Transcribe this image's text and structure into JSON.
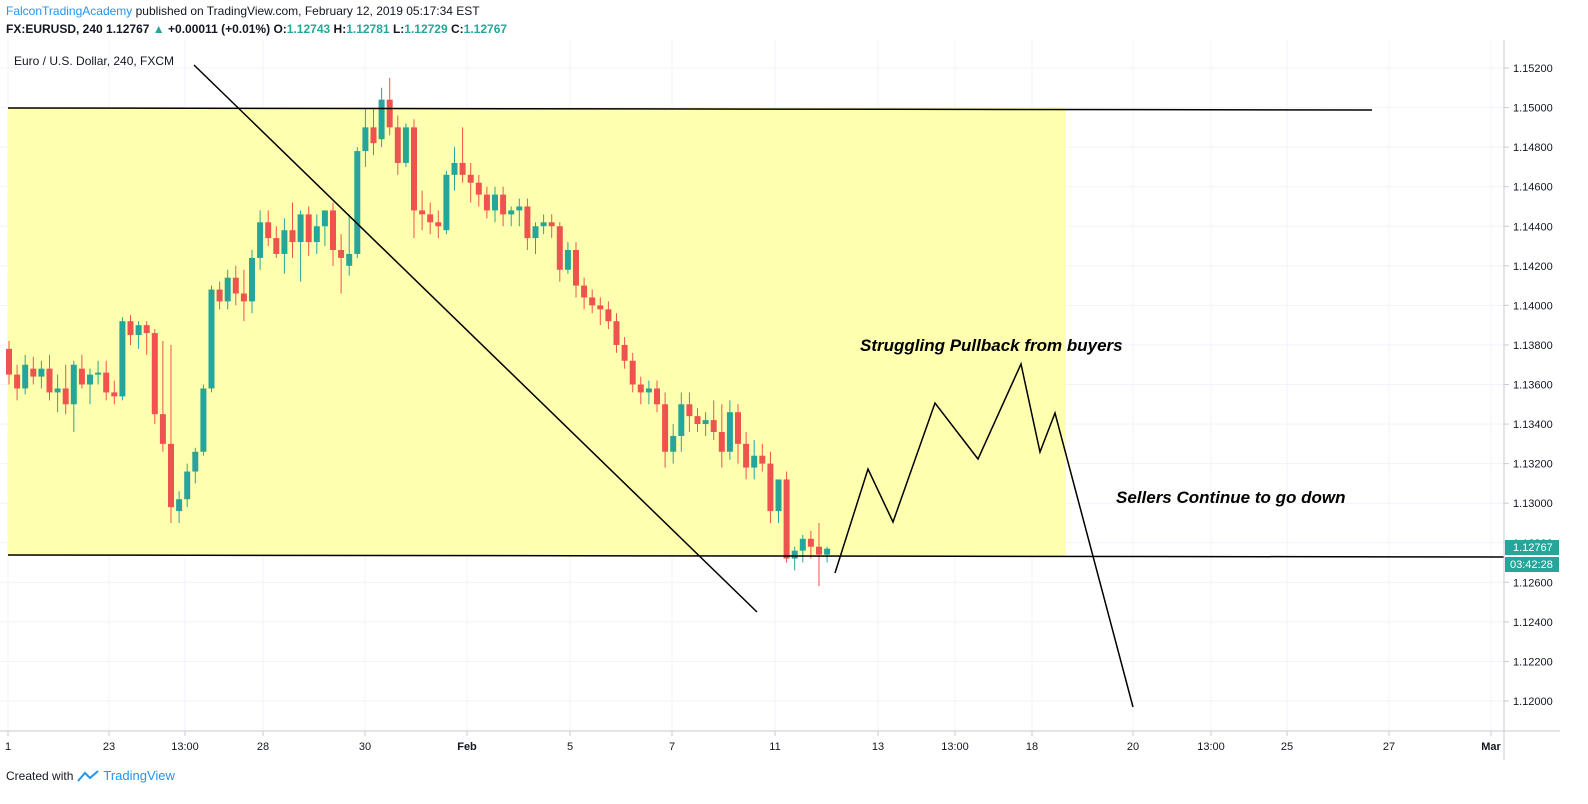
{
  "header": {
    "author": "FalconTradingAcademy",
    "published": "published on TradingView.com, February 12, 2019 05:17:34 EST",
    "symbol": "FX:EURUSD, 240",
    "last": "1.12767",
    "change": "+0.00011 (+0.01%)",
    "o_label": "O:",
    "o_value": "1.12743",
    "h_label": "H:",
    "h_value": "1.12781",
    "l_label": "L:",
    "l_value": "1.12729",
    "c_label": "C:",
    "c_value": "1.12767"
  },
  "chart": {
    "symbol_title": "Euro / U.S. Dollar, 240, FXCM",
    "price_tag": "1.12767",
    "countdown": "03:42:28",
    "annotations": [
      "Struggling Pullback from buyers",
      "Sellers Continue to go down"
    ]
  },
  "colors": {
    "up": "#26a69a",
    "down": "#ef5350",
    "zone": "#ffffb0",
    "line": "#000000",
    "grid": "#f0f3fa",
    "brand": "#2196f3"
  },
  "footer": {
    "created": "Created with",
    "brand": "TradingView"
  },
  "chart_data": {
    "type": "candlestick",
    "y_ticks": [
      "1.15200",
      "1.15000",
      "1.14800",
      "1.14600",
      "1.14400",
      "1.14200",
      "1.14000",
      "1.13800",
      "1.13600",
      "1.13400",
      "1.13200",
      "1.13000",
      "1.12800",
      "1.12600",
      "1.12400",
      "1.12200",
      "1.12000"
    ],
    "x_ticks": [
      "1",
      "23",
      "13:00",
      "28",
      "30",
      "Feb",
      "5",
      "7",
      "11",
      "13",
      "13:00",
      "18",
      "20",
      "13:00",
      "25",
      "27",
      "Mar"
    ],
    "ylim": [
      1.1188,
      1.1526
    ],
    "candles": [
      [
        1.1378,
        1.1382,
        1.136,
        1.1365
      ],
      [
        1.1365,
        1.137,
        1.1352,
        1.1358
      ],
      [
        1.1358,
        1.1375,
        1.1355,
        1.137
      ],
      [
        1.1368,
        1.1374,
        1.136,
        1.1364
      ],
      [
        1.1364,
        1.1372,
        1.1358,
        1.1368
      ],
      [
        1.1368,
        1.1375,
        1.1352,
        1.1356
      ],
      [
        1.1356,
        1.1365,
        1.1346,
        1.1358
      ],
      [
        1.1358,
        1.137,
        1.1345,
        1.135
      ],
      [
        1.135,
        1.1372,
        1.1336,
        1.137
      ],
      [
        1.1368,
        1.1375,
        1.1358,
        1.136
      ],
      [
        1.136,
        1.1368,
        1.135,
        1.1365
      ],
      [
        1.1365,
        1.1372,
        1.136,
        1.1366
      ],
      [
        1.1366,
        1.1372,
        1.1352,
        1.1356
      ],
      [
        1.1356,
        1.1362,
        1.135,
        1.1354
      ],
      [
        1.1354,
        1.1394,
        1.1352,
        1.1392
      ],
      [
        1.1392,
        1.1395,
        1.138,
        1.1385
      ],
      [
        1.1385,
        1.1392,
        1.1378,
        1.139
      ],
      [
        1.139,
        1.1392,
        1.1375,
        1.1386
      ],
      [
        1.1386,
        1.1388,
        1.134,
        1.1345
      ],
      [
        1.1345,
        1.1382,
        1.1326,
        1.133
      ],
      [
        1.133,
        1.138,
        1.129,
        1.1298
      ],
      [
        1.1296,
        1.1306,
        1.129,
        1.1302
      ],
      [
        1.1302,
        1.132,
        1.1298,
        1.1316
      ],
      [
        1.1316,
        1.1328,
        1.131,
        1.1326
      ],
      [
        1.1326,
        1.136,
        1.1324,
        1.1358
      ],
      [
        1.1358,
        1.141,
        1.1356,
        1.1408
      ],
      [
        1.1408,
        1.1412,
        1.1398,
        1.1402
      ],
      [
        1.1402,
        1.1418,
        1.1398,
        1.1414
      ],
      [
        1.1414,
        1.142,
        1.14,
        1.1406
      ],
      [
        1.1406,
        1.1418,
        1.1392,
        1.1402
      ],
      [
        1.1402,
        1.1428,
        1.1396,
        1.1424
      ],
      [
        1.1424,
        1.1448,
        1.1418,
        1.1442
      ],
      [
        1.1442,
        1.1448,
        1.143,
        1.1434
      ],
      [
        1.1434,
        1.144,
        1.1424,
        1.1426
      ],
      [
        1.1426,
        1.1444,
        1.1416,
        1.1438
      ],
      [
        1.1438,
        1.1452,
        1.1424,
        1.1432
      ],
      [
        1.1432,
        1.1448,
        1.1412,
        1.1446
      ],
      [
        1.1446,
        1.145,
        1.1425,
        1.1432
      ],
      [
        1.1432,
        1.1446,
        1.1426,
        1.144
      ],
      [
        1.144,
        1.1446,
        1.143,
        1.1448
      ],
      [
        1.1448,
        1.1452,
        1.142,
        1.1428
      ],
      [
        1.1428,
        1.1436,
        1.1406,
        1.1424
      ],
      [
        1.142,
        1.1446,
        1.1415,
        1.1426
      ],
      [
        1.1426,
        1.148,
        1.1424,
        1.1478
      ],
      [
        1.1478,
        1.15,
        1.147,
        1.149
      ],
      [
        1.149,
        1.15,
        1.1476,
        1.1482
      ],
      [
        1.1484,
        1.151,
        1.148,
        1.1504
      ],
      [
        1.1504,
        1.1515,
        1.1486,
        1.149
      ],
      [
        1.149,
        1.1496,
        1.1466,
        1.1472
      ],
      [
        1.1472,
        1.1492,
        1.147,
        1.149
      ],
      [
        1.149,
        1.1494,
        1.1434,
        1.1448
      ],
      [
        1.1448,
        1.1458,
        1.1438,
        1.1446
      ],
      [
        1.1446,
        1.1452,
        1.1436,
        1.1442
      ],
      [
        1.1442,
        1.1448,
        1.1434,
        1.144
      ],
      [
        1.1438,
        1.1468,
        1.1436,
        1.1466
      ],
      [
        1.1466,
        1.148,
        1.1458,
        1.1472
      ],
      [
        1.1472,
        1.149,
        1.1462,
        1.1466
      ],
      [
        1.1466,
        1.1472,
        1.1452,
        1.1462
      ],
      [
        1.1462,
        1.1466,
        1.145,
        1.1456
      ],
      [
        1.1456,
        1.146,
        1.1444,
        1.1448
      ],
      [
        1.1448,
        1.146,
        1.1442,
        1.1456
      ],
      [
        1.1456,
        1.146,
        1.144,
        1.1446
      ],
      [
        1.1446,
        1.145,
        1.144,
        1.1448
      ],
      [
        1.1448,
        1.1454,
        1.144,
        1.145
      ],
      [
        1.145,
        1.1454,
        1.1428,
        1.1434
      ],
      [
        1.1434,
        1.1442,
        1.1426,
        1.144
      ],
      [
        1.144,
        1.1446,
        1.1436,
        1.1442
      ],
      [
        1.1442,
        1.1446,
        1.1434,
        1.144
      ],
      [
        1.144,
        1.1442,
        1.1412,
        1.1418
      ],
      [
        1.1418,
        1.1432,
        1.1416,
        1.1428
      ],
      [
        1.1428,
        1.1432,
        1.1404,
        1.141
      ],
      [
        1.141,
        1.1414,
        1.1398,
        1.1404
      ],
      [
        1.1404,
        1.1408,
        1.1396,
        1.14
      ],
      [
        1.14,
        1.1404,
        1.139,
        1.1398
      ],
      [
        1.1398,
        1.1402,
        1.1388,
        1.1392
      ],
      [
        1.1392,
        1.1396,
        1.1376,
        1.138
      ],
      [
        1.138,
        1.1384,
        1.1368,
        1.1372
      ],
      [
        1.1372,
        1.1376,
        1.1356,
        1.136
      ],
      [
        1.136,
        1.1364,
        1.135,
        1.1356
      ],
      [
        1.1356,
        1.1362,
        1.135,
        1.1358
      ],
      [
        1.1358,
        1.1362,
        1.1346,
        1.135
      ],
      [
        1.135,
        1.1356,
        1.1318,
        1.1326
      ],
      [
        1.1326,
        1.134,
        1.132,
        1.1334
      ],
      [
        1.1334,
        1.1356,
        1.1326,
        1.135
      ],
      [
        1.135,
        1.1356,
        1.1336,
        1.1344
      ],
      [
        1.1344,
        1.1348,
        1.1336,
        1.134
      ],
      [
        1.134,
        1.1346,
        1.1334,
        1.1342
      ],
      [
        1.1342,
        1.1352,
        1.1332,
        1.1336
      ],
      [
        1.1336,
        1.135,
        1.1318,
        1.1326
      ],
      [
        1.1326,
        1.1352,
        1.1322,
        1.1346
      ],
      [
        1.1346,
        1.135,
        1.132,
        1.133
      ],
      [
        1.133,
        1.1336,
        1.1312,
        1.1318
      ],
      [
        1.1318,
        1.1332,
        1.1312,
        1.1324
      ],
      [
        1.1324,
        1.133,
        1.1316,
        1.132
      ],
      [
        1.132,
        1.1326,
        1.129,
        1.1296
      ],
      [
        1.1296,
        1.131,
        1.129,
        1.1312
      ],
      [
        1.1312,
        1.1316,
        1.127,
        1.1272
      ],
      [
        1.1272,
        1.1278,
        1.1266,
        1.1276
      ],
      [
        1.1276,
        1.1284,
        1.127,
        1.1282
      ],
      [
        1.1282,
        1.1286,
        1.1272,
        1.1278
      ],
      [
        1.1278,
        1.129,
        1.1258,
        1.1274
      ],
      [
        1.1274,
        1.1278,
        1.127,
        1.1277
      ]
    ]
  }
}
